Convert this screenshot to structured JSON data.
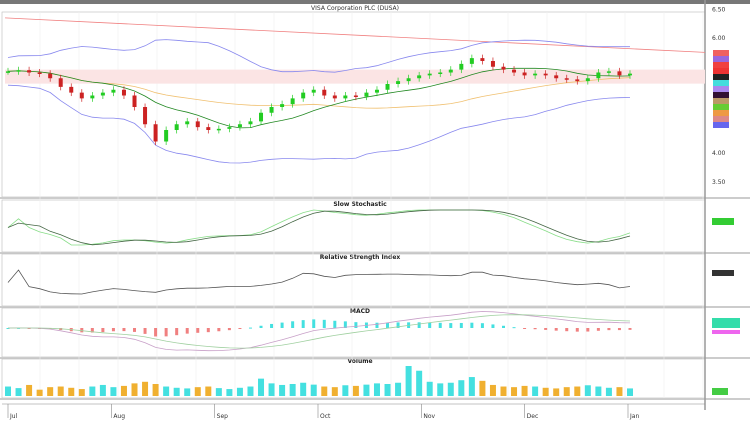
{
  "chart_data": {
    "type": "candlestick",
    "title": "VISA Corporation PLC (DUSA)",
    "y_ticks": [
      "6.50",
      "6.00",
      "4.00",
      "3.50"
    ],
    "ylim": [
      3.5,
      6.65
    ],
    "close": [
      5.42,
      5.44,
      5.4,
      5.38,
      5.3,
      5.15,
      5.05,
      4.95,
      5.0,
      5.05,
      5.1,
      5.0,
      4.8,
      4.5,
      4.2,
      4.4,
      4.5,
      4.55,
      4.45,
      4.4,
      4.42,
      4.45,
      4.5,
      4.55,
      4.7,
      4.8,
      4.85,
      4.95,
      5.05,
      5.1,
      5.0,
      4.95,
      5.0,
      4.98,
      5.05,
      5.1,
      5.2,
      5.25,
      5.3,
      5.35,
      5.38,
      5.4,
      5.45,
      5.55,
      5.65,
      5.6,
      5.5,
      5.45,
      5.4,
      5.35,
      5.38,
      5.35,
      5.3,
      5.28,
      5.25,
      5.3,
      5.4,
      5.42,
      5.35,
      5.38
    ],
    "volume": [
      30,
      25,
      35,
      20,
      28,
      30,
      26,
      22,
      30,
      35,
      28,
      32,
      40,
      45,
      38,
      30,
      26,
      24,
      28,
      30,
      25,
      22,
      26,
      30,
      55,
      40,
      35,
      38,
      42,
      36,
      30,
      28,
      34,
      32,
      36,
      40,
      38,
      42,
      95,
      80,
      45,
      40,
      42,
      50,
      60,
      48,
      35,
      30,
      28,
      32,
      30,
      26,
      24,
      28,
      30,
      34,
      30,
      26,
      28,
      24
    ],
    "panels": [
      "Slow Stochastic",
      "Relative Strength Index",
      "MACD",
      "Volume"
    ],
    "colors": {
      "up": "#22cc22",
      "down": "#cc2222",
      "vol_up": "#44e0e0",
      "vol_down": "#f0b030",
      "upper_band": "#8888ee",
      "ma": "#228822",
      "ma2": "#f0c070",
      "long_ma": "#f08080"
    },
    "x_ticks": [
      "Jul",
      "Aug",
      "Sep",
      "Oct",
      "Nov",
      "Dec",
      "Jan"
    ],
    "grid": true
  }
}
